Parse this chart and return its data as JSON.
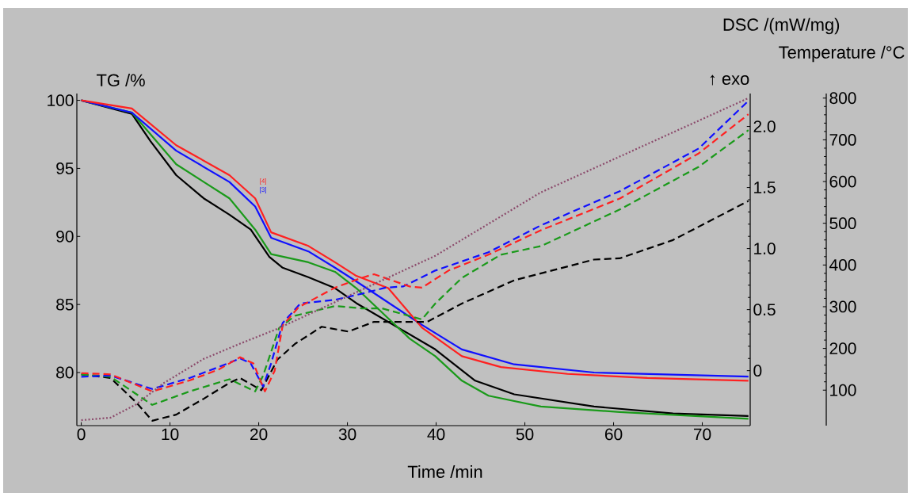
{
  "chart_data": {
    "type": "line",
    "xlabel": "Time /min",
    "ylabel": "TG /%",
    "y2label": "DSC /(mW/mg)",
    "y3label": "Temperature /°C",
    "xlim": [
      -0.5,
      75.4
    ],
    "ylim": [
      76.1,
      100.5
    ],
    "y2lim": [
      -0.45,
      2.27
    ],
    "y3lim": [
      15,
      811
    ],
    "xticks": [
      0,
      10,
      20,
      30,
      40,
      50,
      60,
      70
    ],
    "yticks": [
      80,
      85,
      90,
      95,
      100
    ],
    "y2ticks": [
      0,
      0.5,
      {
        "value": 1,
        "label": "1.0"
      },
      1.5,
      {
        "value": 2,
        "label": "2.0"
      }
    ],
    "y3ticks": [
      100,
      200,
      300,
      400,
      500,
      600,
      700,
      800
    ],
    "series": [
      {
        "color": "#000000",
        "line_style": "solid",
        "x": [
          0,
          5.7,
          7.8,
          10.7,
          13.8,
          16.7,
          19.1,
          21.2,
          22.7,
          25.6,
          28.6,
          31,
          39.9,
          44.4,
          48.8,
          57.8,
          66.7,
          75.2
        ],
        "values": [
          100,
          99.0,
          97.0,
          94.5,
          92.8,
          91.6,
          90.5,
          88.5,
          87.7,
          87.0,
          86.2,
          85.1,
          81.7,
          79.4,
          78.4,
          77.5,
          77.0,
          76.8
        ]
      },
      {
        "color": "#1a9a1a",
        "line_style": "solid",
        "x": [
          0,
          5.7,
          10.7,
          16.7,
          19.6,
          21.4,
          25.6,
          28.6,
          31,
          37,
          39.9,
          42.9,
          45.9,
          51.8,
          60.7,
          75.2
        ],
        "values": [
          100,
          99.1,
          95.3,
          92.8,
          90.5,
          88.7,
          88.1,
          87.4,
          86.2,
          82.5,
          81.2,
          79.4,
          78.3,
          77.5,
          77.1,
          76.6
        ]
      },
      {
        "color": "#1010ff",
        "line_style": "solid",
        "x": [
          0,
          5.7,
          10.7,
          16.7,
          19.6,
          21.4,
          25.6,
          28.6,
          31,
          38.4,
          42.9,
          48.8,
          57.8,
          75.2
        ],
        "values": [
          100,
          99.1,
          96.3,
          94.0,
          92.2,
          89.9,
          88.9,
          87.7,
          86.7,
          83.5,
          81.7,
          80.6,
          80.0,
          79.7
        ]
      },
      {
        "color": "#ff2020",
        "line_style": "solid",
        "x": [
          0,
          5.7,
          10.7,
          16.7,
          19.6,
          21.4,
          25.6,
          28.6,
          31,
          34.6,
          38.4,
          42.9,
          47.3,
          54.8,
          63.8,
          75.2
        ],
        "values": [
          100,
          99.4,
          96.7,
          94.5,
          92.8,
          90.3,
          89.3,
          88.1,
          87.1,
          86.2,
          83.3,
          81.2,
          80.4,
          79.9,
          79.6,
          79.4
        ]
      },
      {
        "color": "#000000",
        "line_style": "dashed",
        "axis": "y2",
        "x": [
          0,
          3.3,
          6.2,
          8.0,
          10.7,
          13.8,
          16.7,
          17.9,
          20.3,
          22.1,
          24.1,
          27.1,
          30.1,
          33,
          39,
          42.9,
          48.8,
          57.8,
          60.7,
          66.7,
          75.2
        ],
        "values": [
          -0.03,
          -0.06,
          -0.26,
          -0.41,
          -0.36,
          -0.23,
          -0.1,
          -0.06,
          -0.16,
          0.09,
          0.22,
          0.36,
          0.32,
          0.4,
          0.4,
          0.55,
          0.74,
          0.91,
          0.92,
          1.07,
          1.39
        ]
      },
      {
        "color": "#1a9a1a",
        "line_style": "dashed",
        "axis": "y2",
        "x": [
          0,
          3.3,
          8,
          12.2,
          16.7,
          19.6,
          20.5,
          22.3,
          24.1,
          28.6,
          31.6,
          33.9,
          38.4,
          39.9,
          42.9,
          47.3,
          51.8,
          60.7,
          69.6,
          75.2
        ],
        "values": [
          -0.03,
          -0.05,
          -0.28,
          -0.17,
          -0.07,
          -0.17,
          -0.04,
          0.35,
          0.45,
          0.53,
          0.51,
          0.51,
          0.42,
          0.55,
          0.76,
          0.95,
          1.02,
          1.32,
          1.67,
          1.97
        ]
      },
      {
        "color": "#1010ff",
        "line_style": "dashed",
        "axis": "y2",
        "x": [
          0,
          3.3,
          8,
          12.2,
          15.5,
          17.9,
          19.1,
          20.5,
          21.4,
          22.7,
          24.7,
          28.6,
          31.6,
          34.3,
          36.3,
          39.9,
          45.9,
          51.8,
          60.7,
          69.6,
          75.2
        ],
        "values": [
          -0.05,
          -0.04,
          -0.15,
          -0.06,
          0.03,
          0.1,
          0.06,
          -0.13,
          0.06,
          0.39,
          0.55,
          0.58,
          0.63,
          0.68,
          0.69,
          0.82,
          0.97,
          1.19,
          1.47,
          1.82,
          2.21
        ]
      },
      {
        "color": "#ff2020",
        "line_style": "dashed",
        "axis": "y2",
        "x": [
          0,
          3.3,
          8,
          12.2,
          15.5,
          17.9,
          19.4,
          20.7,
          21.8,
          22.7,
          24.5,
          28.6,
          31.6,
          33,
          37,
          38.4,
          41.4,
          45.9,
          51.8,
          60.7,
          69.6,
          75.2
        ],
        "values": [
          -0.02,
          -0.03,
          -0.17,
          -0.08,
          0.01,
          0.11,
          0.06,
          -0.17,
          0,
          0.37,
          0.52,
          0.68,
          0.76,
          0.79,
          0.69,
          0.68,
          0.82,
          0.95,
          1.15,
          1.41,
          1.78,
          2.1
        ]
      },
      {
        "color": "#8b4a6b",
        "line_style": "dotted",
        "axis": "y3",
        "x": [
          0,
          3.3,
          6.2,
          9.3,
          13.8,
          18.2,
          22.1,
          39.9,
          51.8,
          75.2
        ],
        "values": [
          28,
          34,
          66,
          117,
          175,
          214,
          247,
          422,
          574,
          800
        ]
      }
    ],
    "annotations": [
      "[4]",
      "[3]",
      "↑ exo"
    ]
  }
}
